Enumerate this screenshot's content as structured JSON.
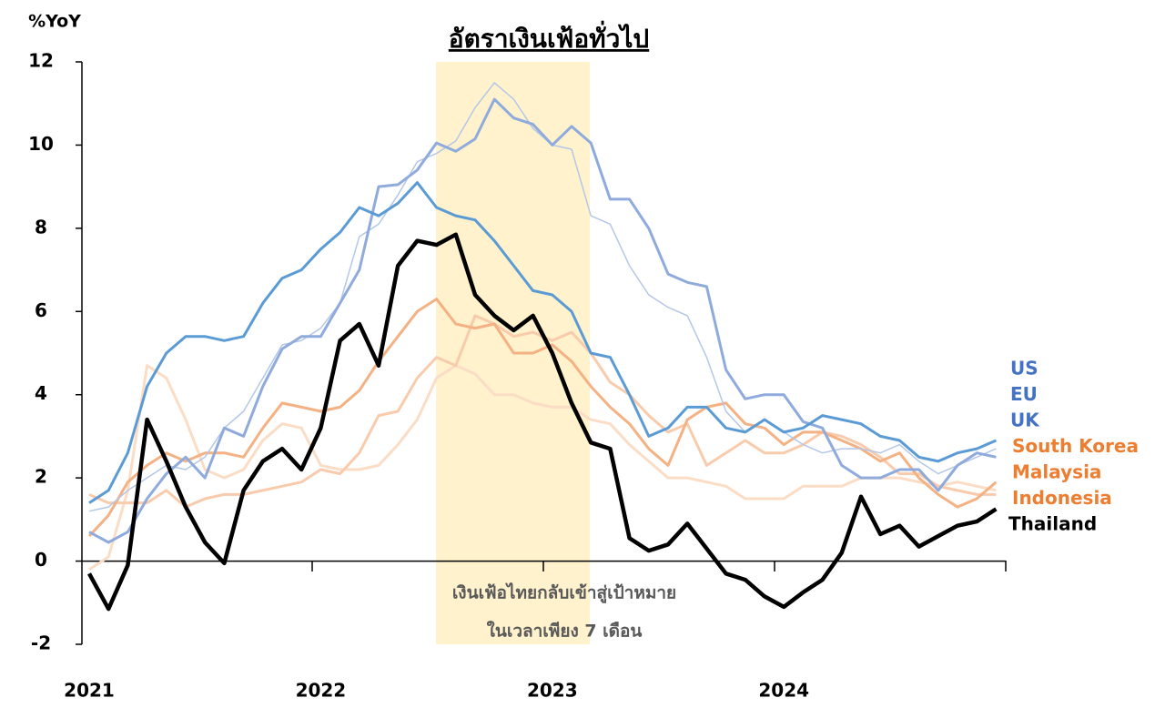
{
  "chart_data": {
    "type": "line",
    "title": "อัตราเงินเฟ้อทั่วไป",
    "y_label": "%YoY",
    "annotation": [
      "เงินเฟ้อไทยกลับเข้าสู่เป้าหมาย",
      "ในเวลาเพียง 7 เดือน"
    ],
    "categories": [
      "2021",
      null,
      null,
      null,
      null,
      null,
      null,
      null,
      null,
      null,
      null,
      null,
      "2022",
      null,
      null,
      null,
      null,
      null,
      null,
      null,
      null,
      null,
      null,
      null,
      "2023",
      null,
      null,
      null,
      null,
      null,
      null,
      null,
      null,
      null,
      null,
      null,
      "2024",
      null,
      null,
      null,
      null,
      null,
      null,
      null,
      null,
      null,
      null,
      null
    ],
    "ylim": [
      -2,
      12
    ],
    "yticks": [
      -2,
      0,
      2,
      4,
      6,
      8,
      10,
      12
    ],
    "series": [
      {
        "name": "US",
        "color": "#5b9bd5",
        "label_color": "#4472c4",
        "width": 3,
        "values": [
          1.4,
          1.7,
          2.6,
          4.2,
          5.0,
          5.4,
          5.4,
          5.3,
          5.4,
          6.2,
          6.8,
          7.0,
          7.5,
          7.9,
          8.5,
          8.3,
          8.6,
          9.1,
          8.5,
          8.3,
          8.2,
          7.7,
          7.1,
          6.5,
          6.4,
          6.0,
          5.0,
          4.9,
          4.0,
          3.0,
          3.2,
          3.7,
          3.7,
          3.2,
          3.1,
          3.4,
          3.1,
          3.2,
          3.5,
          3.4,
          3.3,
          3.0,
          2.9,
          2.5,
          2.4,
          2.6,
          2.7,
          2.9
        ]
      },
      {
        "name": "EU",
        "color": "#b4c7e7",
        "label_color": "#4472c4",
        "width": 1.5,
        "values": [
          1.2,
          1.3,
          1.7,
          2.0,
          2.3,
          2.2,
          2.5,
          3.2,
          3.6,
          4.4,
          5.2,
          5.3,
          5.6,
          6.2,
          7.8,
          8.1,
          8.8,
          9.6,
          9.8,
          10.1,
          10.9,
          11.5,
          11.1,
          10.4,
          10.0,
          9.9,
          8.3,
          8.1,
          7.1,
          6.4,
          6.1,
          5.9,
          4.9,
          3.6,
          3.1,
          3.4,
          3.1,
          2.8,
          2.6,
          2.7,
          2.7,
          2.6,
          2.8,
          2.4,
          2.1,
          2.3,
          2.5,
          2.7
        ]
      },
      {
        "name": "UK",
        "color": "#8faadc",
        "label_color": "#4472c4",
        "width": 3,
        "values": [
          0.7,
          0.45,
          0.7,
          1.5,
          2.1,
          2.5,
          2.0,
          3.2,
          3.0,
          4.2,
          5.1,
          5.4,
          5.4,
          6.2,
          7.0,
          9.0,
          9.05,
          9.4,
          10.05,
          9.85,
          10.15,
          11.1,
          10.65,
          10.5,
          10.0,
          10.45,
          10.05,
          8.7,
          8.7,
          8.0,
          6.9,
          6.7,
          6.6,
          4.6,
          3.9,
          4.0,
          4.0,
          3.35,
          3.2,
          2.3,
          2.0,
          2.0,
          2.2,
          2.2,
          1.7,
          2.3,
          2.6,
          2.5
        ]
      },
      {
        "name": "South Korea",
        "color": "#f4b183",
        "label_color": "#ed7d31",
        "width": 3,
        "values": [
          0.6,
          1.1,
          1.9,
          2.3,
          2.6,
          2.4,
          2.6,
          2.6,
          2.5,
          3.2,
          3.8,
          3.7,
          3.6,
          3.7,
          4.1,
          4.8,
          5.4,
          6.0,
          6.3,
          5.7,
          5.6,
          5.7,
          5.0,
          5.0,
          5.2,
          4.8,
          4.2,
          3.7,
          3.3,
          2.7,
          2.3,
          3.4,
          3.7,
          3.8,
          3.3,
          3.2,
          2.8,
          3.1,
          3.1,
          2.9,
          2.7,
          2.4,
          2.6,
          2.0,
          1.6,
          1.3,
          1.5,
          1.9
        ]
      },
      {
        "name": "Malaysia",
        "color": "#fbdcc5",
        "label_color": "#ed7d31",
        "width": 3,
        "values": [
          -0.2,
          0.1,
          1.7,
          4.7,
          4.4,
          3.4,
          2.2,
          2.0,
          2.2,
          2.9,
          3.3,
          3.2,
          2.3,
          2.2,
          2.2,
          2.3,
          2.8,
          3.4,
          4.4,
          4.7,
          4.5,
          4.0,
          4.0,
          3.8,
          3.7,
          3.7,
          3.4,
          3.3,
          2.8,
          2.4,
          2.0,
          2.0,
          1.9,
          1.8,
          1.5,
          1.5,
          1.5,
          1.8,
          1.8,
          1.8,
          2.0,
          2.0,
          2.0,
          1.9,
          1.8,
          1.9,
          1.8,
          1.7
        ]
      },
      {
        "name": "Indonesia",
        "color": "#f8cbad",
        "label_color": "#ed7d31",
        "width": 3,
        "values": [
          1.6,
          1.4,
          1.4,
          1.4,
          1.7,
          1.3,
          1.5,
          1.6,
          1.6,
          1.7,
          1.8,
          1.9,
          2.2,
          2.1,
          2.6,
          3.5,
          3.6,
          4.4,
          4.9,
          4.7,
          5.9,
          5.7,
          5.4,
          5.5,
          5.3,
          5.5,
          5.0,
          4.3,
          4.0,
          3.5,
          3.1,
          3.3,
          2.3,
          2.6,
          2.9,
          2.6,
          2.6,
          2.8,
          3.1,
          3.0,
          2.8,
          2.5,
          2.1,
          2.1,
          1.8,
          1.7,
          1.6,
          1.6
        ]
      },
      {
        "name": "Thailand",
        "color": "#000000",
        "label_color": "#000000",
        "width": 4.5,
        "values": [
          -0.3,
          -1.15,
          -0.1,
          3.4,
          2.4,
          1.3,
          0.45,
          -0.05,
          1.7,
          2.4,
          2.7,
          2.2,
          3.2,
          5.3,
          5.7,
          4.7,
          7.1,
          7.7,
          7.6,
          7.85,
          6.4,
          5.9,
          5.55,
          5.9,
          5.0,
          3.8,
          2.85,
          2.7,
          0.55,
          0.25,
          0.4,
          0.9,
          0.3,
          -0.3,
          -0.45,
          -0.85,
          -1.1,
          -0.75,
          -0.45,
          0.2,
          1.55,
          0.65,
          0.85,
          0.35,
          0.6,
          0.85,
          0.95,
          1.25
        ]
      }
    ]
  }
}
